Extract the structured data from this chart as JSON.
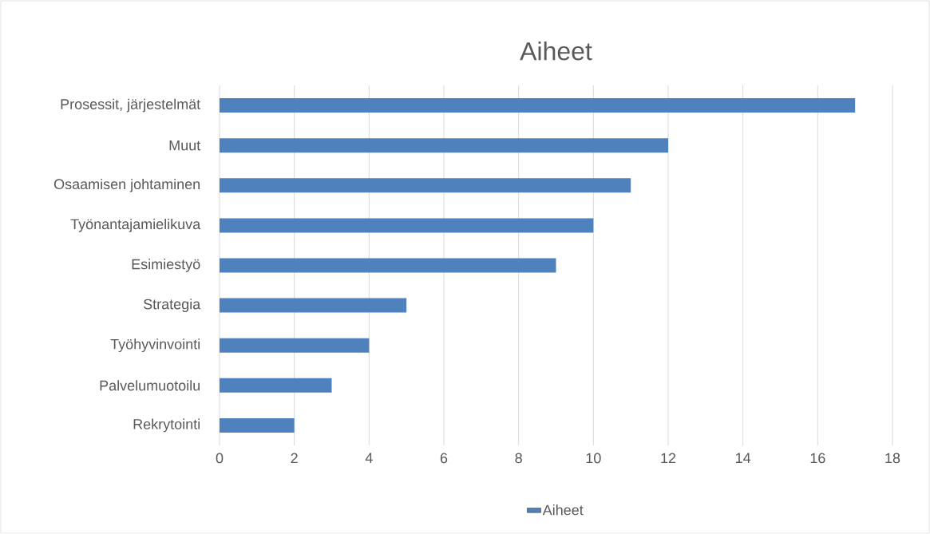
{
  "chart_data": {
    "type": "bar",
    "orientation": "horizontal",
    "title": "Aiheet",
    "categories": [
      "Prosessit, järjestelmät",
      "Muut",
      "Osaamisen johtaminen",
      "Työnantajamielikuva",
      "Esimiestyö",
      "Strategia",
      "Työhyvinvointi",
      "Palvelumuotoilu",
      "Rekrytointi"
    ],
    "series": [
      {
        "name": "Aiheet",
        "color": "#4f81bd",
        "values": [
          17,
          12,
          11,
          10,
          9,
          5,
          4,
          3,
          2
        ]
      }
    ],
    "xlim": [
      0,
      18
    ],
    "xticks": [
      0,
      2,
      4,
      6,
      8,
      10,
      12,
      14,
      16,
      18
    ],
    "grid": "x",
    "legend": "bottom"
  }
}
